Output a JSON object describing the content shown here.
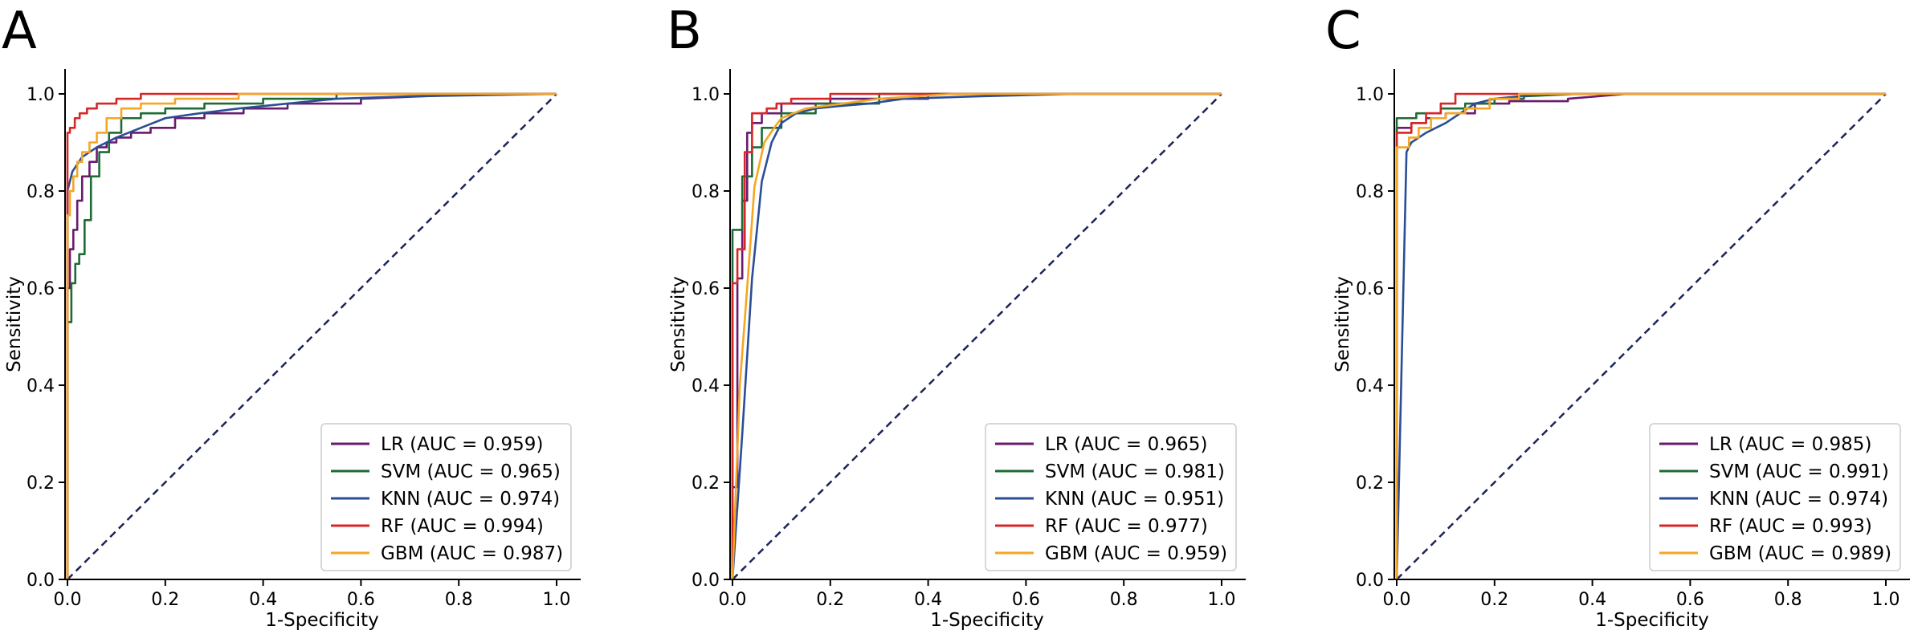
{
  "colors": {
    "LR": "#6a1b6e",
    "SVM": "#1d6b35",
    "KNN": "#2a4e96",
    "RF": "#d62728",
    "GBM": "#f5a623",
    "diagonal": "#1b2458",
    "axis": "#000000"
  },
  "chart_data": [
    {
      "type": "line",
      "panel_label": "A",
      "xlabel": "1-Specificity",
      "ylabel": "Sensitivity",
      "xlim": [
        0,
        1.0
      ],
      "ylim": [
        0,
        1.0
      ],
      "xticks": [
        "0.0",
        "0.2",
        "0.4",
        "0.6",
        "0.8",
        "1.0"
      ],
      "yticks": [
        "0.0",
        "0.2",
        "0.4",
        "0.6",
        "0.8",
        "1.0"
      ],
      "grid": false,
      "legend_position": "lower-right",
      "diagonal": {
        "x": [
          0,
          1
        ],
        "y": [
          0,
          1
        ],
        "style": "dashed"
      },
      "series": [
        {
          "name": "LR",
          "label": "LR (AUC = 0.959)",
          "x": [
            0,
            0,
            0.005,
            0.005,
            0.012,
            0.012,
            0.02,
            0.02,
            0.03,
            0.03,
            0.045,
            0.045,
            0.06,
            0.06,
            0.08,
            0.08,
            0.1,
            0.1,
            0.13,
            0.13,
            0.17,
            0.17,
            0.22,
            0.22,
            0.28,
            0.28,
            0.36,
            0.36,
            0.45,
            0.45,
            0.6,
            0.6,
            0.85,
            1.0
          ],
          "y": [
            0,
            0.6,
            0.6,
            0.68,
            0.68,
            0.72,
            0.72,
            0.78,
            0.78,
            0.83,
            0.83,
            0.86,
            0.86,
            0.89,
            0.89,
            0.9,
            0.9,
            0.91,
            0.91,
            0.92,
            0.92,
            0.93,
            0.93,
            0.95,
            0.95,
            0.96,
            0.96,
            0.97,
            0.97,
            0.98,
            0.98,
            0.99,
            1.0,
            1.0
          ]
        },
        {
          "name": "SVM",
          "label": "SVM (AUC = 0.965)",
          "x": [
            0,
            0,
            0.008,
            0.008,
            0.016,
            0.016,
            0.024,
            0.024,
            0.035,
            0.035,
            0.048,
            0.048,
            0.065,
            0.065,
            0.085,
            0.085,
            0.11,
            0.11,
            0.15,
            0.15,
            0.2,
            0.2,
            0.28,
            0.28,
            0.4,
            0.4,
            0.55,
            0.55,
            0.7,
            1.0
          ],
          "y": [
            0,
            0.53,
            0.53,
            0.61,
            0.61,
            0.65,
            0.65,
            0.67,
            0.67,
            0.74,
            0.74,
            0.83,
            0.83,
            0.88,
            0.88,
            0.92,
            0.92,
            0.95,
            0.95,
            0.96,
            0.96,
            0.97,
            0.97,
            0.98,
            0.98,
            0.99,
            0.99,
            1.0,
            1.0,
            1.0
          ]
        },
        {
          "name": "KNN",
          "label": "KNN (AUC = 0.974)",
          "x": [
            0,
            0,
            0.01,
            0.03,
            0.06,
            0.1,
            0.15,
            0.2,
            0.27,
            0.35,
            0.45,
            0.55,
            0.7,
            1.0
          ],
          "y": [
            0,
            0.8,
            0.84,
            0.87,
            0.89,
            0.91,
            0.93,
            0.95,
            0.96,
            0.97,
            0.98,
            0.99,
            0.995,
            1.0
          ],
          "style": "smooth"
        },
        {
          "name": "RF",
          "label": "RF (AUC = 0.994)",
          "x": [
            0,
            0,
            0.005,
            0.005,
            0.015,
            0.015,
            0.025,
            0.025,
            0.04,
            0.04,
            0.06,
            0.06,
            0.1,
            0.1,
            0.15,
            0.15,
            0.3,
            0.3,
            1.0
          ],
          "y": [
            0,
            0.92,
            0.92,
            0.93,
            0.93,
            0.95,
            0.95,
            0.96,
            0.96,
            0.97,
            0.97,
            0.98,
            0.98,
            0.99,
            0.99,
            1.0,
            1.0,
            1.0,
            1.0
          ]
        },
        {
          "name": "GBM",
          "label": "GBM (AUC = 0.987)",
          "x": [
            0,
            0,
            0.005,
            0.005,
            0.012,
            0.012,
            0.02,
            0.02,
            0.03,
            0.03,
            0.045,
            0.045,
            0.06,
            0.06,
            0.08,
            0.08,
            0.11,
            0.11,
            0.15,
            0.15,
            0.22,
            0.22,
            0.35,
            0.35,
            1.0
          ],
          "y": [
            0,
            0.75,
            0.75,
            0.8,
            0.8,
            0.83,
            0.83,
            0.86,
            0.86,
            0.88,
            0.88,
            0.9,
            0.9,
            0.92,
            0.92,
            0.95,
            0.95,
            0.97,
            0.97,
            0.98,
            0.98,
            0.99,
            0.99,
            1.0,
            1.0
          ]
        }
      ]
    },
    {
      "type": "line",
      "panel_label": "B",
      "xlabel": "1-Specificity",
      "ylabel": "Sensitivity",
      "xlim": [
        0,
        1.0
      ],
      "ylim": [
        0,
        1.0
      ],
      "xticks": [
        "0.0",
        "0.2",
        "0.4",
        "0.6",
        "0.8",
        "1.0"
      ],
      "yticks": [
        "0.0",
        "0.2",
        "0.4",
        "0.6",
        "0.8",
        "1.0"
      ],
      "grid": false,
      "legend_position": "lower-right",
      "diagonal": {
        "x": [
          0,
          1
        ],
        "y": [
          0,
          1
        ],
        "style": "dashed"
      },
      "series": [
        {
          "name": "LR",
          "label": "LR (AUC = 0.965)",
          "x": [
            0,
            0.01,
            0.01,
            0.02,
            0.02,
            0.03,
            0.03,
            0.04,
            0.04,
            0.06,
            0.06,
            0.1,
            0.1,
            0.2,
            0.2,
            0.4,
            0.4,
            0.68,
            1.0
          ],
          "y": [
            0.19,
            0.19,
            0.62,
            0.62,
            0.78,
            0.78,
            0.92,
            0.92,
            0.94,
            0.94,
            0.96,
            0.96,
            0.98,
            0.98,
            0.99,
            0.99,
            1.0,
            1.0,
            1.0
          ]
        },
        {
          "name": "SVM",
          "label": "SVM (AUC = 0.981)",
          "x": [
            0,
            0,
            0.02,
            0.02,
            0.04,
            0.04,
            0.06,
            0.06,
            0.1,
            0.1,
            0.17,
            0.17,
            0.3,
            0.3,
            0.5,
            1.0
          ],
          "y": [
            0,
            0.72,
            0.72,
            0.83,
            0.83,
            0.89,
            0.89,
            0.93,
            0.93,
            0.96,
            0.96,
            0.98,
            0.98,
            1.0,
            1.0,
            1.0
          ]
        },
        {
          "name": "KNN",
          "label": "KNN (AUC = 0.951)",
          "x": [
            0,
            0.02,
            0.04,
            0.06,
            0.08,
            0.1,
            0.13,
            0.17,
            0.22,
            0.28,
            0.35,
            0.5,
            0.7,
            1.0
          ],
          "y": [
            0,
            0.3,
            0.62,
            0.82,
            0.9,
            0.94,
            0.96,
            0.97,
            0.975,
            0.98,
            0.99,
            0.995,
            1.0,
            1.0
          ],
          "style": "smooth"
        },
        {
          "name": "RF",
          "label": "RF (AUC = 0.977)",
          "x": [
            0,
            0,
            0.01,
            0.01,
            0.025,
            0.025,
            0.04,
            0.04,
            0.07,
            0.07,
            0.09,
            0.09,
            0.12,
            0.12,
            0.2,
            0.2,
            0.35,
            0.35,
            1.0
          ],
          "y": [
            0,
            0.61,
            0.61,
            0.68,
            0.68,
            0.88,
            0.88,
            0.96,
            0.96,
            0.97,
            0.97,
            0.98,
            0.98,
            0.99,
            0.99,
            1.0,
            1.0,
            1.0,
            1.0
          ]
        },
        {
          "name": "GBM",
          "label": "GBM (AUC = 0.959)",
          "x": [
            0,
            0.015,
            0.015,
            0.03,
            0.03,
            0.045,
            0.045,
            0.065,
            0.065,
            0.085,
            0.085,
            0.1,
            0.1,
            0.15,
            0.15,
            0.3,
            0.3,
            0.45,
            0.45,
            1.0
          ],
          "y": [
            0,
            0.4,
            0.4,
            0.6,
            0.6,
            0.81,
            0.81,
            0.9,
            0.9,
            0.93,
            0.93,
            0.95,
            0.95,
            0.97,
            0.97,
            0.99,
            0.99,
            1.0,
            1.0,
            1.0
          ]
        }
      ]
    },
    {
      "type": "line",
      "panel_label": "C",
      "xlabel": "1-Specificity",
      "ylabel": "Sensitivity",
      "xlim": [
        0,
        1.0
      ],
      "ylim": [
        0,
        1.0
      ],
      "xticks": [
        "0.0",
        "0.2",
        "0.4",
        "0.6",
        "0.8",
        "1.0"
      ],
      "yticks": [
        "0.0",
        "0.2",
        "0.4",
        "0.6",
        "0.8",
        "1.0"
      ],
      "grid": false,
      "legend_position": "lower-right",
      "diagonal": {
        "x": [
          0,
          1
        ],
        "y": [
          0,
          1
        ],
        "style": "dashed"
      },
      "series": [
        {
          "name": "LR",
          "label": "LR (AUC = 0.985)",
          "x": [
            0,
            0,
            0.03,
            0.03,
            0.06,
            0.06,
            0.1,
            0.1,
            0.16,
            0.16,
            0.23,
            0.23,
            0.35,
            0.35,
            0.47,
            1.0
          ],
          "y": [
            0,
            0.93,
            0.93,
            0.94,
            0.94,
            0.95,
            0.95,
            0.96,
            0.96,
            0.98,
            0.98,
            0.985,
            0.985,
            0.99,
            1.0,
            1.0
          ]
        },
        {
          "name": "SVM",
          "label": "SVM (AUC = 0.991)",
          "x": [
            0,
            0,
            0.04,
            0.04,
            0.09,
            0.09,
            0.14,
            0.14,
            0.2,
            0.2,
            0.26,
            0.26,
            0.37,
            1.0
          ],
          "y": [
            0,
            0.95,
            0.95,
            0.96,
            0.96,
            0.97,
            0.97,
            0.98,
            0.98,
            0.99,
            0.99,
            0.995,
            1.0,
            1.0
          ]
        },
        {
          "name": "KNN",
          "label": "KNN (AUC = 0.974)",
          "x": [
            0,
            0.02,
            0.03,
            0.06,
            0.1,
            0.13,
            0.16,
            0.2,
            0.25,
            0.3,
            0.4,
            1.0
          ],
          "y": [
            0,
            0.88,
            0.9,
            0.92,
            0.94,
            0.96,
            0.98,
            0.99,
            0.995,
            1.0,
            1.0,
            1.0
          ]
        },
        {
          "name": "RF",
          "label": "RF (AUC = 0.993)",
          "x": [
            0,
            0,
            0.03,
            0.03,
            0.06,
            0.06,
            0.09,
            0.09,
            0.12,
            0.12,
            1.0
          ],
          "y": [
            0,
            0.92,
            0.92,
            0.94,
            0.94,
            0.96,
            0.96,
            0.98,
            0.98,
            1.0,
            1.0
          ]
        },
        {
          "name": "GBM",
          "label": "GBM (AUC = 0.989)",
          "x": [
            0,
            0,
            0.025,
            0.025,
            0.045,
            0.045,
            0.07,
            0.07,
            0.1,
            0.1,
            0.14,
            0.14,
            0.19,
            0.19,
            0.25,
            0.25,
            1.0
          ],
          "y": [
            0,
            0.89,
            0.89,
            0.91,
            0.91,
            0.93,
            0.93,
            0.95,
            0.95,
            0.96,
            0.96,
            0.97,
            0.97,
            0.99,
            0.99,
            1.0,
            1.0
          ]
        }
      ]
    }
  ]
}
